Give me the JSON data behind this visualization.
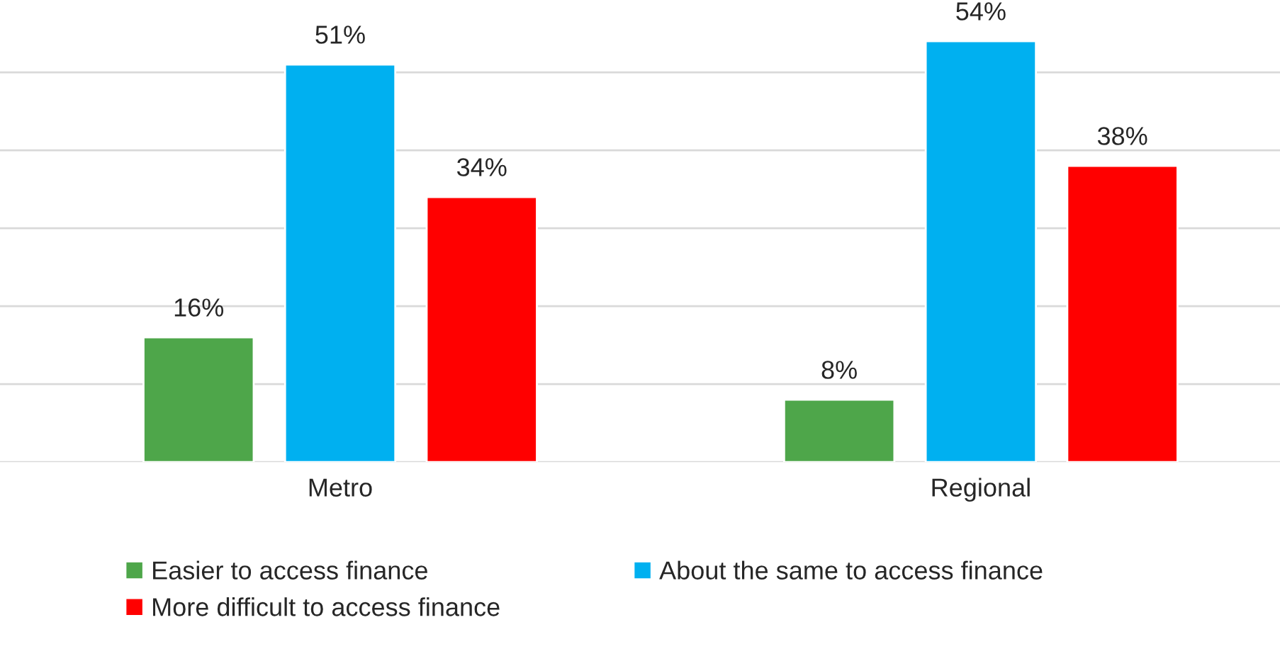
{
  "chart_data": {
    "type": "bar",
    "categories": [
      "Metro",
      "Regional"
    ],
    "series": [
      {
        "name": "Easier to access finance",
        "color": "#4ea64a",
        "values": [
          16,
          8
        ],
        "value_labels": [
          "16%",
          "8%"
        ]
      },
      {
        "name": "About the same to access finance",
        "color": "#00b0f0",
        "values": [
          51,
          54
        ],
        "value_labels": [
          "51%",
          "54%"
        ]
      },
      {
        "name": "More difficult to access finance",
        "color": "#ff0000",
        "values": [
          34,
          38
        ],
        "value_labels": [
          "34%",
          "38%"
        ]
      }
    ],
    "tick_labels": "x",
    "grid": "y",
    "legend": "bottom"
  }
}
